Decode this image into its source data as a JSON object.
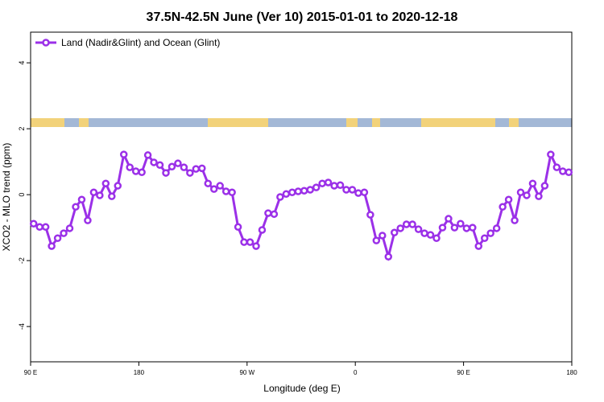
{
  "chart_data": {
    "type": "line",
    "title": "37.5N-42.5N June (Ver 10)   2015-01-01 to 2020-12-18",
    "x_label": "Longitude (deg E)",
    "y_label": "XCO2 - MLO trend (ppm)",
    "xlim": [
      90,
      540
    ],
    "ylim": [
      -5.07,
      4.93
    ],
    "xticks": [
      {
        "value": 90,
        "label": "90 E"
      },
      180,
      {
        "value": 270,
        "label": "90 W"
      },
      {
        "value": 360,
        "label": "0"
      },
      {
        "value": 450,
        "label": "90 E"
      },
      {
        "value": 540,
        "label": "180"
      }
    ],
    "yticks": [
      4,
      2,
      0,
      -2,
      -4
    ],
    "legend_position": "top-left",
    "x": [
      92.5,
      97.5,
      102.5,
      107.5,
      112.5,
      117.5,
      122.5,
      127.5,
      132.5,
      137.5,
      142.5,
      147.5,
      152.5,
      157.5,
      162.5,
      167.5,
      172.5,
      177.5,
      182.5,
      187.5,
      192.5,
      197.5,
      202.5,
      207.5,
      212.5,
      217.5,
      222.5,
      227.5,
      232.5,
      237.5,
      242.5,
      247.5,
      252.5,
      257.5,
      262.5,
      267.5,
      272.5,
      277.5,
      282.5,
      287.5,
      292.5,
      297.5,
      302.5,
      307.5,
      312.5,
      317.5,
      322.5,
      327.5,
      332.5,
      337.5,
      342.5,
      347.5,
      352.5,
      357.5,
      362.5,
      367.5,
      372.5,
      377.5,
      382.5,
      387.5,
      392.5,
      397.5,
      402.5,
      407.5,
      412.5,
      417.5,
      422.5,
      427.5,
      432.5,
      437.5,
      442.5,
      447.5,
      452.5,
      457.5,
      462.5,
      467.5,
      472.5,
      477.5,
      482.5,
      487.5,
      492.5,
      497.5,
      502.5,
      507.5,
      512.5,
      517.5,
      522.5,
      527.5,
      532.5,
      537.5
    ],
    "series": [
      {
        "name": "Land (Nadir&Glint) and Ocean (Glint)",
        "color": "#9b30e8",
        "values": [
          -0.88,
          -0.98,
          -0.98,
          -1.56,
          -1.32,
          -1.17,
          -1.02,
          -0.37,
          -0.15,
          -0.78,
          0.07,
          -0.02,
          0.34,
          -0.05,
          0.27,
          1.22,
          0.83,
          0.71,
          0.68,
          1.2,
          0.98,
          0.9,
          0.66,
          0.85,
          0.95,
          0.83,
          0.66,
          0.78,
          0.8,
          0.34,
          0.17,
          0.27,
          0.1,
          0.07,
          -0.98,
          -1.44,
          -1.44,
          -1.56,
          -1.07,
          -0.56,
          -0.59,
          -0.07,
          0.02,
          0.07,
          0.1,
          0.12,
          0.15,
          0.22,
          0.34,
          0.37,
          0.27,
          0.29,
          0.15,
          0.15,
          0.05,
          0.07,
          -0.61,
          -1.39,
          -1.24,
          -1.88,
          -1.15,
          -1.02,
          -0.9,
          -0.9,
          -1.05,
          -1.17,
          -1.22,
          -1.32,
          -1.0,
          -0.73,
          -1.0,
          -0.88,
          -1.02,
          -1.0,
          -1.56,
          -1.32,
          -1.17,
          -1.02,
          -0.37,
          -0.15,
          -0.78,
          0.07,
          -0.02,
          0.34,
          -0.05,
          0.27,
          1.22,
          0.83,
          0.71,
          0.68
        ]
      }
    ]
  }
}
